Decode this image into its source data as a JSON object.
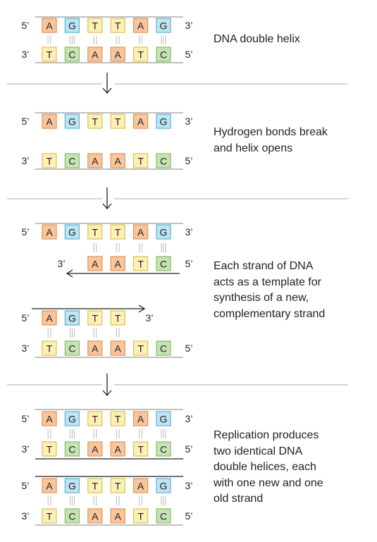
{
  "colors": {
    "A": {
      "fill": "#f8c69c",
      "stroke": "#e8955c"
    },
    "G": {
      "fill": "#bfe4f2",
      "stroke": "#5fb8d8"
    },
    "T": {
      "fill": "#fdf0b6",
      "stroke": "#ddc55c"
    },
    "C": {
      "fill": "#c8e3b3",
      "stroke": "#8cc06a"
    },
    "backbone": "#9b9b9b",
    "divider": "#aaaaaa",
    "bond": "#b9b9b9",
    "arrow": "#231f20"
  },
  "labels": {
    "five_prime": "5’",
    "three_prime": "3’"
  },
  "panels": {
    "p1": {
      "caption": [
        "DNA double helix"
      ],
      "top": {
        "bases": [
          "A",
          "G",
          "T",
          "T",
          "A",
          "G"
        ]
      },
      "bottom": {
        "bases": [
          "T",
          "C",
          "A",
          "A",
          "T",
          "C"
        ]
      }
    },
    "p2": {
      "caption": [
        "Hydrogen bonds break",
        "and helix opens"
      ],
      "top": {
        "bases": [
          "A",
          "G",
          "T",
          "T",
          "A",
          "G"
        ]
      },
      "bottom": {
        "bases": [
          "T",
          "C",
          "A",
          "A",
          "T",
          "C"
        ]
      }
    },
    "p3": {
      "caption": [
        "Each strand of DNA",
        "acts as a template for",
        "synthesis of a new,",
        "complementary strand"
      ],
      "template_top": {
        "bases": [
          "A",
          "G",
          "T",
          "T",
          "A",
          "G"
        ]
      },
      "new_top": {
        "bases": [
          "A",
          "A",
          "T",
          "C"
        ]
      },
      "new_bottom": {
        "bases": [
          "A",
          "G",
          "T",
          "T"
        ]
      },
      "template_bottom": {
        "bases": [
          "T",
          "C",
          "A",
          "A",
          "T",
          "C"
        ]
      }
    },
    "p4": {
      "caption": [
        "Replication produces",
        "two identical DNA",
        "double helices, each",
        "with one new and one",
        "old strand"
      ],
      "h1_top": {
        "bases": [
          "A",
          "G",
          "T",
          "T",
          "A",
          "G"
        ]
      },
      "h1_bottom": {
        "bases": [
          "T",
          "C",
          "A",
          "A",
          "T",
          "C"
        ]
      },
      "h2_top": {
        "bases": [
          "A",
          "G",
          "T",
          "T",
          "A",
          "G"
        ]
      },
      "h2_bottom": {
        "bases": [
          "T",
          "C",
          "A",
          "A",
          "T",
          "C"
        ]
      }
    }
  }
}
